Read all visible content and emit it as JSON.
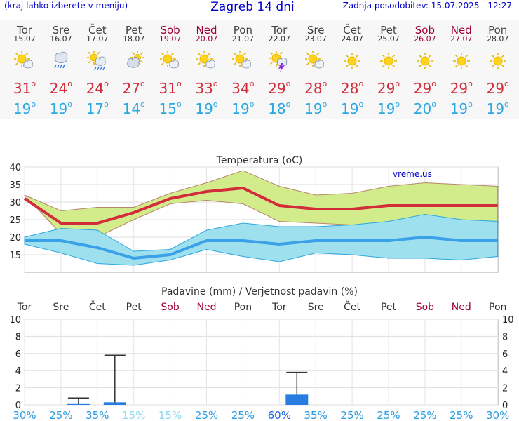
{
  "header": {
    "left": "(kraj lahko izberete v meniju)",
    "title": "Zagreb 14 dni",
    "right": "Zadnja posodobitev: 15.07.2025 - 12:27"
  },
  "degree": "o",
  "days": [
    {
      "name": "Tor",
      "date": "15.07",
      "weekend": false,
      "icon": "sun-cloud-icon",
      "max": "31",
      "min": "19"
    },
    {
      "name": "Sre",
      "date": "16.07",
      "weekend": false,
      "icon": "rain-cloud-icon",
      "max": "24",
      "min": "19"
    },
    {
      "name": "Čet",
      "date": "17.07",
      "weekend": false,
      "icon": "sun-rain-icon",
      "max": "24",
      "min": "17"
    },
    {
      "name": "Pet",
      "date": "18.07",
      "weekend": false,
      "icon": "cloudy-sun-icon",
      "max": "27",
      "min": "14"
    },
    {
      "name": "Sob",
      "date": "19.07",
      "weekend": true,
      "icon": "sun-cloud-icon",
      "max": "31",
      "min": "15"
    },
    {
      "name": "Ned",
      "date": "20.07",
      "weekend": true,
      "icon": "sun-cloud-icon",
      "max": "33",
      "min": "19"
    },
    {
      "name": "Pon",
      "date": "21.07",
      "weekend": false,
      "icon": "sun-cloud-icon",
      "max": "34",
      "min": "19"
    },
    {
      "name": "Tor",
      "date": "22.07",
      "weekend": false,
      "icon": "thunder-sun-icon",
      "max": "29",
      "min": "18"
    },
    {
      "name": "Sre",
      "date": "23.07",
      "weekend": false,
      "icon": "sun-cloud-icon",
      "max": "28",
      "min": "19"
    },
    {
      "name": "Čet",
      "date": "24.07",
      "weekend": false,
      "icon": "sun-icon",
      "max": "28",
      "min": "19"
    },
    {
      "name": "Pet",
      "date": "25.07",
      "weekend": false,
      "icon": "sun-icon",
      "max": "29",
      "min": "19"
    },
    {
      "name": "Sob",
      "date": "26.07",
      "weekend": true,
      "icon": "sun-icon",
      "max": "29",
      "min": "20"
    },
    {
      "name": "Ned",
      "date": "27.07",
      "weekend": true,
      "icon": "sun-icon",
      "max": "29",
      "min": "19"
    },
    {
      "name": "Pon",
      "date": "28.07",
      "weekend": false,
      "icon": "sun-icon",
      "max": "29",
      "min": "19"
    }
  ],
  "colors": {
    "max": "#d22b3a",
    "min": "#2aa8e0",
    "weekend": "#a0003a",
    "maxband": "#d2ec8c",
    "minband": "#9ee0ee",
    "overlap": "#8acf7e",
    "rain": "#2a7de0",
    "prob_high": "#2a7de0",
    "prob_low": "#8ad8f2"
  },
  "chart_data": [
    {
      "type": "line",
      "title": "Temperatura",
      "title_unit": "(oC)",
      "credit": "vreme.us",
      "xlabel": "",
      "ylabel": "",
      "ylim": [
        10,
        40
      ],
      "yticks": [
        15,
        20,
        25,
        30,
        35,
        40
      ],
      "grid": true,
      "x": [
        "15.07",
        "16.07",
        "17.07",
        "18.07",
        "19.07",
        "20.07",
        "21.07",
        "22.07",
        "23.07",
        "24.07",
        "25.07",
        "26.07",
        "27.07",
        "28.07"
      ],
      "series": [
        {
          "values": [
            31,
            24,
            24,
            27,
            31,
            33,
            34,
            29,
            28,
            28,
            29,
            29,
            29,
            29
          ],
          "band_low": [
            32,
            21,
            20,
            25,
            29.5,
            30.5,
            29.5,
            24.5,
            24,
            23.5,
            23.5,
            22.5,
            23,
            24
          ],
          "band_high": [
            32,
            27.5,
            28.5,
            28.5,
            32.5,
            35.5,
            39,
            34.5,
            32,
            32.5,
            34.5,
            35.5,
            35,
            34.5
          ]
        },
        {
          "values": [
            19,
            19,
            17,
            14,
            15,
            19,
            19,
            18,
            19,
            19,
            19,
            20,
            19,
            19
          ],
          "band_low": [
            18,
            15.5,
            12.5,
            12,
            13.5,
            16.5,
            14.5,
            13,
            15.5,
            15,
            14,
            14,
            13.5,
            14.5
          ],
          "band_high": [
            20,
            22.5,
            22,
            16,
            16.5,
            22,
            24,
            23,
            23,
            23.5,
            24.5,
            26.5,
            25,
            24.5
          ]
        }
      ]
    },
    {
      "type": "bar",
      "title": "Padavine (mm) / Verjetnost padavin (%)",
      "ylim": [
        0,
        10
      ],
      "yticks": [
        0,
        2,
        4,
        6,
        8,
        10
      ],
      "categories": [
        "Tor",
        "Sre",
        "Čet",
        "Pet",
        "Sob",
        "Ned",
        "Pon",
        "Tor",
        "Sre",
        "Čet",
        "Pet",
        "Sob",
        "Ned",
        "Pon"
      ],
      "values": [
        0,
        0.1,
        0.3,
        0,
        0,
        0,
        0,
        1.2,
        0,
        0,
        0,
        0,
        0,
        0
      ],
      "error_high": [
        0,
        0.8,
        5.8,
        0,
        0,
        0,
        0,
        3.8,
        0,
        0,
        0,
        0,
        0,
        0
      ],
      "probability": [
        "30%",
        "25%",
        "35%",
        "15%",
        "15%",
        "25%",
        "25%",
        "60%",
        "35%",
        "25%",
        "25%",
        "25%",
        "25%",
        "30%"
      ],
      "probability_high": [
        true,
        true,
        true,
        false,
        false,
        true,
        true,
        true,
        true,
        true,
        true,
        true,
        true,
        true
      ],
      "probability_strong": [
        false,
        false,
        false,
        false,
        false,
        false,
        false,
        true,
        false,
        false,
        false,
        false,
        false,
        false
      ]
    }
  ]
}
